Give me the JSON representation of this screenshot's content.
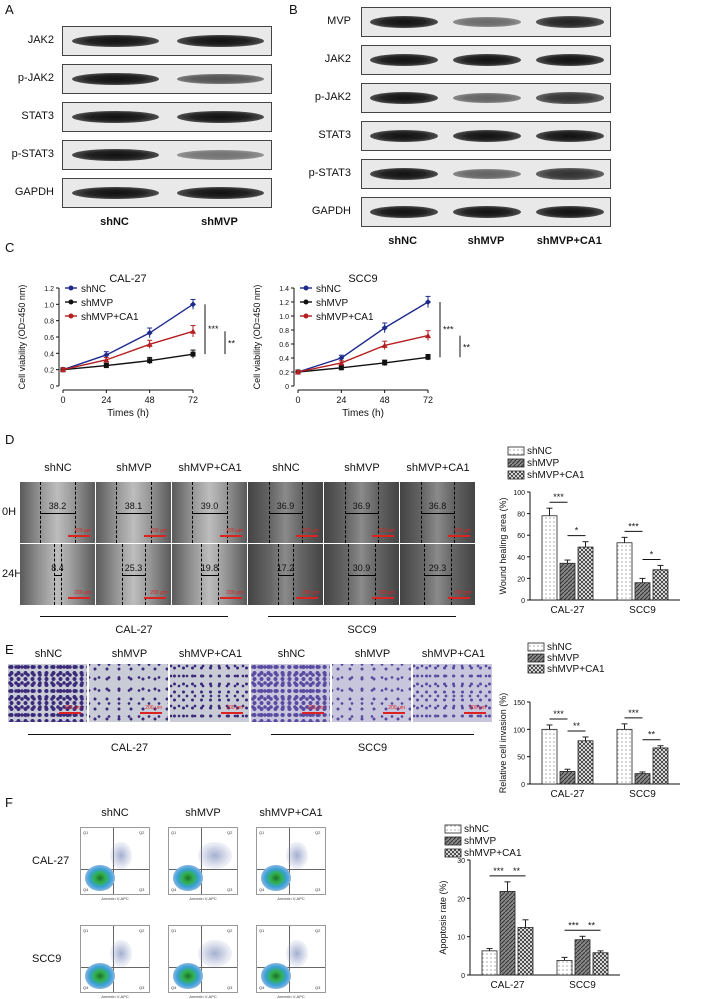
{
  "panels": {
    "A": {
      "label": "A",
      "rows": [
        "JAK2",
        "p-JAK2",
        "STAT3",
        "p-STAT3",
        "GAPDH"
      ],
      "columns": [
        "shNC",
        "shMVP"
      ],
      "band_intensity": [
        [
          1,
          1
        ],
        [
          1,
          0.6
        ],
        [
          1,
          1
        ],
        [
          1,
          0.4
        ],
        [
          1,
          1
        ]
      ]
    },
    "B": {
      "label": "B",
      "rows": [
        "MVP",
        "JAK2",
        "p-JAK2",
        "STAT3",
        "p-STAT3",
        "GAPDH"
      ],
      "columns": [
        "shNC",
        "shMVP",
        "shMVP+CA1"
      ],
      "band_intensity": [
        [
          1,
          0.45,
          0.9
        ],
        [
          1,
          1,
          1
        ],
        [
          1,
          0.5,
          0.8
        ],
        [
          1,
          1,
          1
        ],
        [
          1,
          0.5,
          0.8
        ],
        [
          1,
          1,
          1
        ]
      ]
    },
    "C": {
      "label": "C"
    },
    "D": {
      "label": "D",
      "columns": [
        "shNC",
        "shMVP",
        "shMVP+CA1",
        "shNC",
        "shMVP",
        "shMVP+CA1"
      ],
      "rows": [
        "0H",
        "24H"
      ],
      "widths_0h": [
        "38.2",
        "38.1",
        "39.0",
        "36.9",
        "36.9",
        "36.8"
      ],
      "widths_24h": [
        "8.4",
        "25.3",
        "19.8",
        "17.2",
        "30.9",
        "29.3"
      ],
      "scale_text": "200 μm",
      "groups": [
        "CAL-27",
        "SCC9"
      ]
    },
    "E": {
      "label": "E",
      "columns": [
        "shNC",
        "shMVP",
        "shMVP+CA1",
        "shNC",
        "shMVP",
        "shMVP+CA1"
      ],
      "scale_text": "200 μm",
      "groups": [
        "CAL-27",
        "SCC9"
      ]
    },
    "F": {
      "label": "F",
      "columns": [
        "shNC",
        "shMVP",
        "shMVP+CA1"
      ],
      "rows": [
        "CAL-27",
        "SCC9"
      ],
      "x_axis": "Annexin V-APC",
      "quadrant_labels": [
        "Q1",
        "Q2",
        "Q3",
        "Q4"
      ]
    }
  },
  "chart_data": [
    {
      "id": "cal27-viability",
      "type": "line",
      "title": "CAL-27",
      "xlabel": "Times (h)",
      "ylabel": "Cell viability (OD=450 nm)",
      "x": [
        0,
        24,
        48,
        72
      ],
      "xlim": [
        0,
        72
      ],
      "ylim": [
        0,
        1.2
      ],
      "yticks": [
        "0",
        "0.2",
        "0.4",
        "0.6",
        "0.8",
        "1.0",
        "1.2"
      ],
      "series": [
        {
          "name": "shNC",
          "values": [
            0.2,
            0.38,
            0.65,
            1.0
          ],
          "err": [
            0.02,
            0.04,
            0.06,
            0.06
          ],
          "color": "#1f2b8c"
        },
        {
          "name": "shMVP",
          "values": [
            0.2,
            0.25,
            0.31,
            0.39
          ],
          "err": [
            0.02,
            0.03,
            0.04,
            0.05
          ],
          "color": "#111111"
        },
        {
          "name": "shMVP+CA1",
          "values": [
            0.2,
            0.32,
            0.51,
            0.67
          ],
          "err": [
            0.02,
            0.03,
            0.05,
            0.07
          ],
          "color": "#b52020"
        }
      ],
      "significance": [
        "***",
        "**"
      ]
    },
    {
      "id": "scc9-viability",
      "type": "line",
      "title": "SCC9",
      "xlabel": "Times (h)",
      "ylabel": "Cell viability (OD=450 nm)",
      "x": [
        0,
        24,
        48,
        72
      ],
      "xlim": [
        0,
        72
      ],
      "ylim": [
        0,
        1.4
      ],
      "yticks": [
        "0",
        "0.2",
        "0.4",
        "0.6",
        "0.8",
        "1.0",
        "1.2",
        "1.4"
      ],
      "series": [
        {
          "name": "shNC",
          "values": [
            0.2,
            0.4,
            0.83,
            1.2
          ],
          "err": [
            0.02,
            0.04,
            0.07,
            0.08
          ],
          "color": "#1f2b8c"
        },
        {
          "name": "shMVP",
          "values": [
            0.2,
            0.26,
            0.33,
            0.41
          ],
          "err": [
            0.02,
            0.03,
            0.04,
            0.04
          ],
          "color": "#111111"
        },
        {
          "name": "shMVP+CA1",
          "values": [
            0.2,
            0.33,
            0.58,
            0.72
          ],
          "err": [
            0.02,
            0.03,
            0.06,
            0.07
          ],
          "color": "#b52020"
        }
      ],
      "significance": [
        "***",
        "**"
      ]
    },
    {
      "id": "wound-healing",
      "type": "bar",
      "ylabel": "Wound healing area (%)",
      "categories": [
        "CAL-27",
        "SCC9"
      ],
      "ylim": [
        0,
        100
      ],
      "yticks": [
        "0",
        "20",
        "40",
        "60",
        "80",
        "100"
      ],
      "series": [
        {
          "name": "shNC",
          "values": [
            78,
            53
          ],
          "err": [
            7,
            5
          ]
        },
        {
          "name": "shMVP",
          "values": [
            34,
            16
          ],
          "err": [
            3,
            4
          ]
        },
        {
          "name": "shMVP+CA1",
          "values": [
            49,
            28
          ],
          "err": [
            5,
            4
          ]
        }
      ],
      "significance": [
        [
          "***",
          "*"
        ],
        [
          "***",
          "*"
        ]
      ]
    },
    {
      "id": "cell-invasion",
      "type": "bar",
      "ylabel": "Relative cell invasion (%)",
      "categories": [
        "CAL-27",
        "SCC9"
      ],
      "ylim": [
        0,
        150
      ],
      "yticks": [
        "0",
        "50",
        "100",
        "150"
      ],
      "series": [
        {
          "name": "shNC",
          "values": [
            100,
            100
          ],
          "err": [
            8,
            10
          ]
        },
        {
          "name": "shMVP",
          "values": [
            23,
            19
          ],
          "err": [
            4,
            3
          ]
        },
        {
          "name": "shMVP+CA1",
          "values": [
            79,
            66
          ],
          "err": [
            7,
            4
          ]
        }
      ],
      "significance": [
        [
          "***",
          "**"
        ],
        [
          "***",
          "**"
        ]
      ]
    },
    {
      "id": "apoptosis",
      "type": "bar",
      "ylabel": "Apoptosis rate (%)",
      "categories": [
        "CAL-27",
        "SCC9"
      ],
      "ylim": [
        0,
        30
      ],
      "yticks": [
        "0",
        "10",
        "20",
        "30"
      ],
      "series": [
        {
          "name": "shNC",
          "values": [
            6.3,
            3.8
          ],
          "err": [
            0.6,
            0.8
          ]
        },
        {
          "name": "shMVP",
          "values": [
            21.8,
            9.2
          ],
          "err": [
            2.5,
            0.9
          ]
        },
        {
          "name": "shMVP+CA1",
          "values": [
            12.4,
            5.8
          ],
          "err": [
            2.0,
            0.5
          ]
        }
      ],
      "significance": [
        [
          "***",
          "**"
        ],
        [
          "***",
          "**"
        ]
      ]
    }
  ]
}
